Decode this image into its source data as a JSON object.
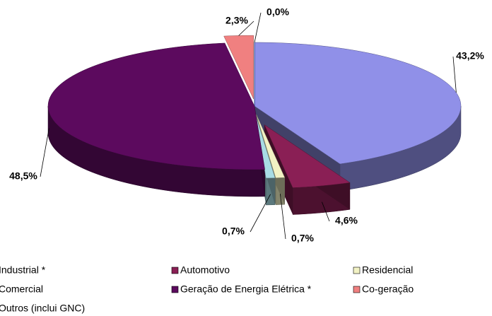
{
  "chart_data": {
    "type": "pie",
    "categories": [
      "Industrial *",
      "Automotivo",
      "Residencial",
      "Comercial",
      "Geração de Energia Elétrica *",
      "Co-geração",
      "Outros (inclui GNC)"
    ],
    "values": [
      43.2,
      4.6,
      0.7,
      0.7,
      48.5,
      2.3,
      0.0
    ],
    "value_labels": [
      "43,2%",
      "4,6%",
      "0,7%",
      "0,7%",
      "48,5%",
      "2,3%",
      "0,0%"
    ],
    "colors": [
      "#9090e8",
      "#8a1f55",
      "#f2f2c4",
      "#a8dce4",
      "#5c0a5e",
      "#f08080",
      "#1f5fc0"
    ]
  }
}
